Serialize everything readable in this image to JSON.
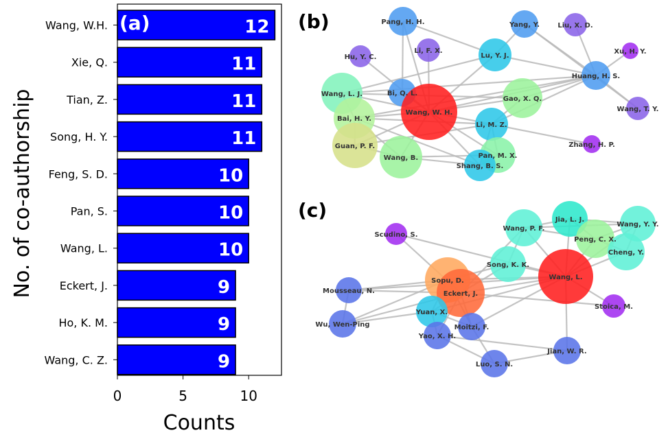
{
  "chart_data": [
    {
      "type": "bar",
      "orientation": "horizontal",
      "panel_label": "(a)",
      "categories": [
        "Wang, W.H.",
        "Xie, Q.",
        "Tian, Z.",
        "Song, H. Y.",
        "Feng, S. D.",
        "Pan, S.",
        "Wang, L.",
        "Eckert, J.",
        "Ho, K. M.",
        "Wang, C. Z."
      ],
      "values": [
        12,
        11,
        11,
        11,
        10,
        10,
        10,
        9,
        9,
        9
      ],
      "xlabel": "Counts",
      "ylabel": "No. of co-authorship",
      "xlim": [
        0,
        12.5
      ],
      "xticks": [
        "0",
        "5",
        "10"
      ],
      "bar_color": "#0000ff",
      "bar_edge_color": "#000000",
      "grid": false
    },
    {
      "type": "network",
      "panel_label": "(b)",
      "nodes": [
        {
          "name": "Pang, H. H.",
          "color": "#4f9cf0"
        },
        {
          "name": "Yang, Y.",
          "color": "#4f9cf0"
        },
        {
          "name": "Liu, X. D.",
          "color": "#8a63e8"
        },
        {
          "name": "Xu, H. Y.",
          "color": "#a22ef0"
        },
        {
          "name": "Hu, Y. C.",
          "color": "#8a63e8"
        },
        {
          "name": "Li, F. X.",
          "color": "#8a63e8"
        },
        {
          "name": "Lu, Y. J.",
          "color": "#2ec7e8"
        },
        {
          "name": "Huang, H. S.",
          "color": "#4f9cf0"
        },
        {
          "name": "Wang, L. J.",
          "color": "#82f2bc"
        },
        {
          "name": "Bi, Q. L.",
          "color": "#4f9cf0"
        },
        {
          "name": "Wang, W. H.",
          "color": "#ff1f1f"
        },
        {
          "name": "Gao, X. Q.",
          "color": "#9cf29c"
        },
        {
          "name": "Wang, T. Y.",
          "color": "#8a63e8"
        },
        {
          "name": "Bai, H. Y.",
          "color": "#b3f29c"
        },
        {
          "name": "Li, M. Z.",
          "color": "#2ec7e8"
        },
        {
          "name": "Guan, P. F.",
          "color": "#d6e08a"
        },
        {
          "name": "Zhang, H. P.",
          "color": "#a22ef0"
        },
        {
          "name": "Pan, M. X.",
          "color": "#8af2a8"
        },
        {
          "name": "Wang, B.",
          "color": "#9cf29c"
        },
        {
          "name": "Shang, B. S.",
          "color": "#2ec7e8"
        }
      ],
      "edges": [
        [
          "Wang, W. H.",
          "Bi, Q. L."
        ],
        [
          "Wang, W. H.",
          "Li, M. Z."
        ],
        [
          "Wang, W. H.",
          "Gao, X. Q."
        ],
        [
          "Wang, W. H.",
          "Wang, L. J."
        ],
        [
          "Wang, W. H.",
          "Bai, H. Y."
        ],
        [
          "Wang, W. H.",
          "Guan, P. F."
        ],
        [
          "Wang, W. H.",
          "Wang, B."
        ],
        [
          "Wang, W. H.",
          "Pan, M. X."
        ],
        [
          "Wang, W. H.",
          "Shang, B. S."
        ],
        [
          "Wang, W. H.",
          "Lu, Y. J."
        ],
        [
          "Wang, W. H.",
          "Li, F. X."
        ],
        [
          "Wang, W. H.",
          "Huang, H. S."
        ],
        [
          "Wang, W. H.",
          "Hu, Y. C."
        ],
        [
          "Wang, W. H.",
          "Pang, H. H."
        ],
        [
          "Pang, H. H.",
          "Lu, Y. J."
        ],
        [
          "Pang, H. H.",
          "Bi, Q. L."
        ],
        [
          "Yang, Y.",
          "Lu, Y. J."
        ],
        [
          "Yang, Y.",
          "Huang, H. S."
        ],
        [
          "Liu, X. D.",
          "Huang, H. S."
        ],
        [
          "Xu, H. Y.",
          "Huang, H. S."
        ],
        [
          "Huang, H. S.",
          "Wang, T. Y."
        ],
        [
          "Huang, H. S.",
          "Lu, Y. J."
        ],
        [
          "Huang, H. S.",
          "Gao, X. Q."
        ],
        [
          "Huang, H. S.",
          "Wang, L. J."
        ],
        [
          "Huang, H. S.",
          "Bai, H. Y."
        ],
        [
          "Huang, H. S.",
          "Li, M. Z."
        ],
        [
          "Yang, Y.",
          "Wang, T. Y."
        ],
        [
          "Wang, L. J.",
          "Bai, H. Y."
        ],
        [
          "Bai, H. Y.",
          "Guan, P. F."
        ],
        [
          "Bai, H. Y.",
          "Wang, B."
        ],
        [
          "Guan, P. F.",
          "Wang, B."
        ],
        [
          "Wang, B.",
          "Shang, B. S."
        ],
        [
          "Wang, B.",
          "Pan, M. X."
        ],
        [
          "Pan, M. X.",
          "Shang, B. S."
        ],
        [
          "Li, M. Z.",
          "Pan, M. X."
        ],
        [
          "Li, M. Z.",
          "Zhang, H. P."
        ],
        [
          "Li, M. Z.",
          "Shang, B. S."
        ],
        [
          "Gao, X. Q.",
          "Li, M. Z."
        ],
        [
          "Bai, H. Y.",
          "Li, M. Z."
        ],
        [
          "Guan, P. F.",
          "Li, M. Z."
        ],
        [
          "Bai, H. Y.",
          "Shang, B. S."
        ],
        [
          "Wang, L. J.",
          "Gao, X. Q."
        ],
        [
          "Lu, Y. J.",
          "Wang, L. J."
        ]
      ]
    },
    {
      "type": "network",
      "panel_label": "(c)",
      "nodes": [
        {
          "name": "Scudino, S.",
          "color": "#a22ef0"
        },
        {
          "name": "Wang, P. F.",
          "color": "#5ef0d6"
        },
        {
          "name": "Jia, L. J.",
          "color": "#2ee8cc"
        },
        {
          "name": "Wang, Y. Y.",
          "color": "#5ef0d6"
        },
        {
          "name": "Peng, C. X.",
          "color": "#9cf29c"
        },
        {
          "name": "Cheng, Y.",
          "color": "#5ef0d6"
        },
        {
          "name": "Song, K. K.",
          "color": "#5ef0d6"
        },
        {
          "name": "Sopu, D.",
          "color": "#ffa95e"
        },
        {
          "name": "Wang, L.",
          "color": "#ff1f1f"
        },
        {
          "name": "Mousseau, N.",
          "color": "#5a74e8"
        },
        {
          "name": "Eckert, J.",
          "color": "#ff6a3a"
        },
        {
          "name": "Stoica, M.",
          "color": "#a22ef0"
        },
        {
          "name": "Yuan, X.",
          "color": "#2ec7e8"
        },
        {
          "name": "Wu, Wen-Ping",
          "color": "#5a74e8"
        },
        {
          "name": "Moitzi, F.",
          "color": "#5a74e8"
        },
        {
          "name": "Yao, X. H.",
          "color": "#5a74e8"
        },
        {
          "name": "Jian, W. R.",
          "color": "#5a74e8"
        },
        {
          "name": "Luo, S. N.",
          "color": "#5a74e8"
        }
      ],
      "edges": [
        [
          "Wang, L.",
          "Eckert, J."
        ],
        [
          "Wang, L.",
          "Sopu, D."
        ],
        [
          "Wang, L.",
          "Song, K. K."
        ],
        [
          "Wang, L.",
          "Wang, P. F."
        ],
        [
          "Wang, L.",
          "Jia, L. J."
        ],
        [
          "Wang, L.",
          "Peng, C. X."
        ],
        [
          "Wang, L.",
          "Cheng, Y."
        ],
        [
          "Wang, L.",
          "Wang, Y. Y."
        ],
        [
          "Wang, L.",
          "Stoica, M."
        ],
        [
          "Wang, L.",
          "Jian, W. R."
        ],
        [
          "Wang, L.",
          "Yuan, X."
        ],
        [
          "Wang, L.",
          "Moitzi, F."
        ],
        [
          "Wang, L.",
          "Mousseau, N."
        ],
        [
          "Wang, L.",
          "Scudino, S."
        ],
        [
          "Eckert, J.",
          "Sopu, D."
        ],
        [
          "Eckert, J.",
          "Song, K. K."
        ],
        [
          "Eckert, J.",
          "Yuan, X."
        ],
        [
          "Eckert, J.",
          "Moitzi, F."
        ],
        [
          "Eckert, J.",
          "Mousseau, N."
        ],
        [
          "Eckert, J.",
          "Wu, Wen-Ping"
        ],
        [
          "Eckert, J.",
          "Yao, X. H."
        ],
        [
          "Eckert, J.",
          "Scudino, S."
        ],
        [
          "Eckert, J.",
          "Stoica, M."
        ],
        [
          "Eckert, J.",
          "Wang, P. F."
        ],
        [
          "Sopu, D.",
          "Yuan, X."
        ],
        [
          "Sopu, D.",
          "Moitzi, F."
        ],
        [
          "Sopu, D.",
          "Song, K. K."
        ],
        [
          "Sopu, D.",
          "Mousseau, N."
        ],
        [
          "Sopu, D.",
          "Wu, Wen-Ping"
        ],
        [
          "Yuan, X.",
          "Moitzi, F."
        ],
        [
          "Yuan, X.",
          "Wu, Wen-Ping"
        ],
        [
          "Yuan, X.",
          "Yao, X. H."
        ],
        [
          "Yao, X. H.",
          "Luo, S. N."
        ],
        [
          "Luo, S. N.",
          "Jian, W. R."
        ],
        [
          "Moitzi, F.",
          "Luo, S. N."
        ],
        [
          "Wang, P. F.",
          "Jia, L. J."
        ],
        [
          "Wang, P. F.",
          "Peng, C. X."
        ],
        [
          "Jia, L. J.",
          "Peng, C. X."
        ],
        [
          "Jia, L. J.",
          "Wang, Y. Y."
        ],
        [
          "Peng, C. X.",
          "Cheng, Y."
        ],
        [
          "Peng, C. X.",
          "Wang, Y. Y."
        ],
        [
          "Cheng, Y.",
          "Wang, Y. Y."
        ],
        [
          "Wang, P. F.",
          "Wang, Y. Y."
        ],
        [
          "Song, K. K.",
          "Wang, P. F."
        ],
        [
          "Mousseau, N.",
          "Wu, Wen-Ping"
        ],
        [
          "Jian, W. R.",
          "Yao, X. H."
        ]
      ]
    }
  ]
}
